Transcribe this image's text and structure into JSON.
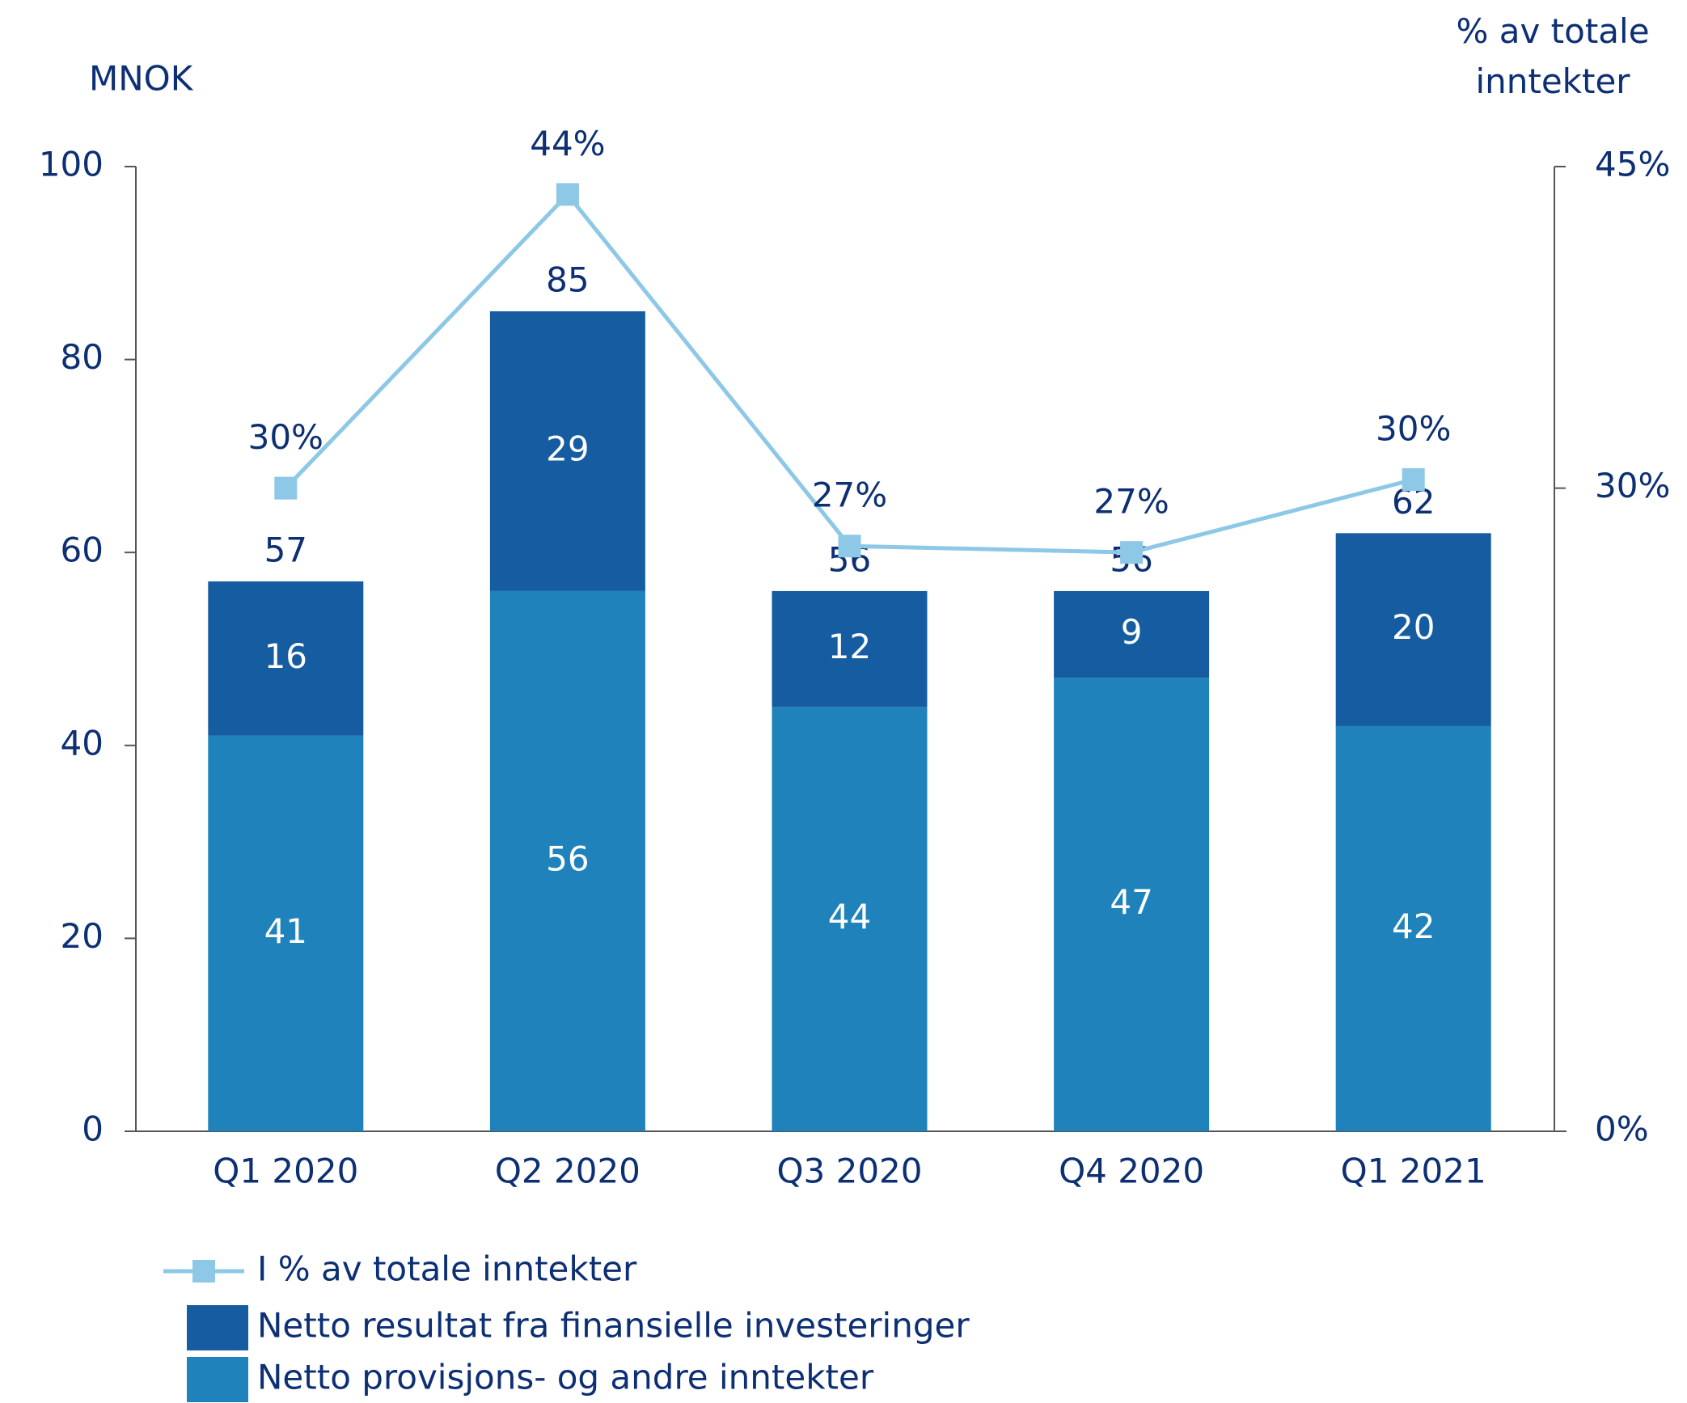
{
  "chart_data": {
    "type": "bar",
    "stacked": true,
    "ylabel": "MNOK",
    "y2label": "% av totale inntekter",
    "categories": [
      "Q1 2020",
      "Q2 2020",
      "Q3 2020",
      "Q4 2020",
      "Q1 2021"
    ],
    "ylim": [
      0,
      100
    ],
    "yticks": [
      0,
      20,
      40,
      60,
      80,
      100
    ],
    "y2lim": [
      0,
      45
    ],
    "y2ticks": [
      {
        "value": 0,
        "label": "0%"
      },
      {
        "value": 30,
        "label": "30%"
      },
      {
        "value": 45,
        "label": "45%"
      }
    ],
    "totals": [
      57,
      85,
      56,
      56,
      62
    ],
    "series": [
      {
        "name": "I % av totale inntekter",
        "type": "line",
        "axis": "y2",
        "color": "#8dc8e6",
        "values": [
          30,
          43.7,
          27.3,
          27,
          30.4
        ],
        "value_labels": [
          "30%",
          "44%",
          "27%",
          "27%",
          "30%"
        ]
      },
      {
        "name": "Netto resultat fra finansielle investeringer",
        "type": "bar",
        "color": "#155da0",
        "values": [
          16,
          29,
          12,
          9,
          20
        ]
      },
      {
        "name": "Netto provisjons- og andre inntekter",
        "type": "bar",
        "color": "#1f82bb",
        "values": [
          41,
          56,
          44,
          47,
          42
        ]
      }
    ]
  }
}
